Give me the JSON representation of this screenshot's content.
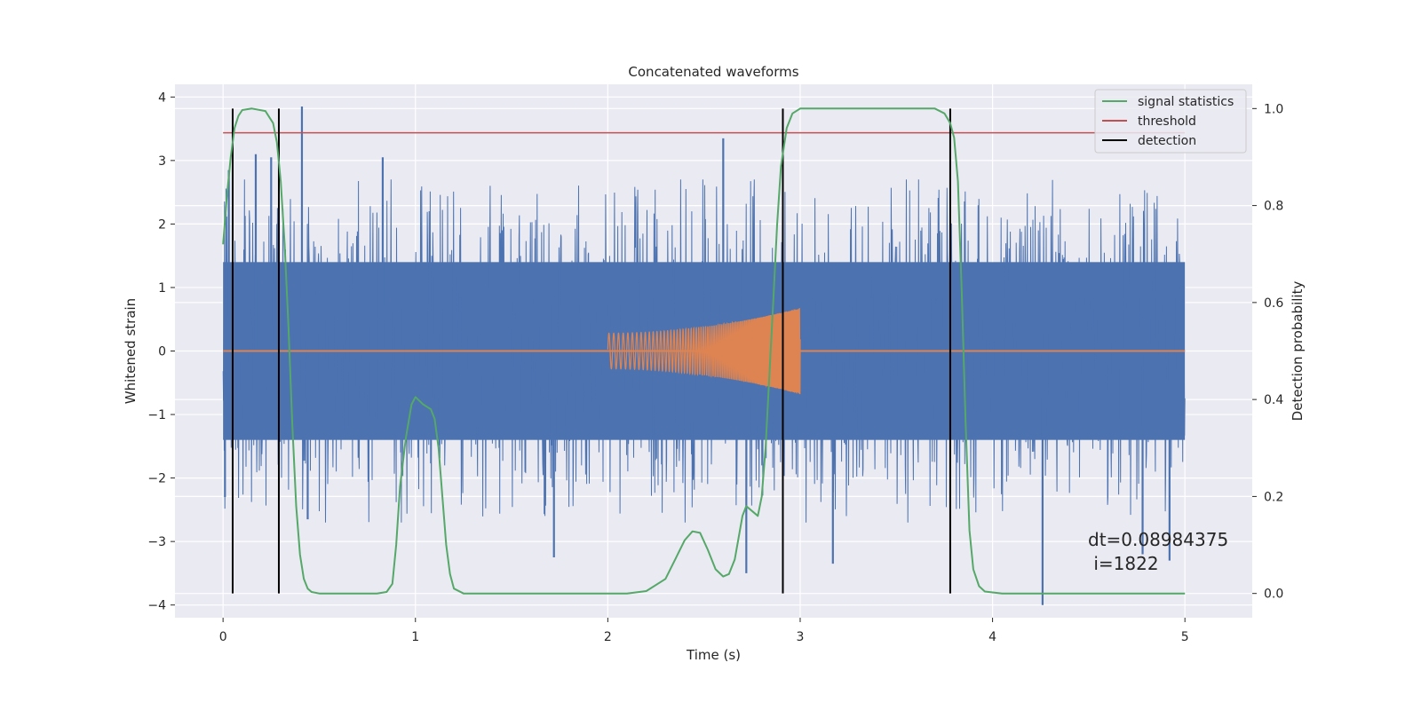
{
  "chart_data": {
    "type": "line",
    "title": "Concatenated waveforms",
    "xlabel": "Time (s)",
    "ylabel": "Whitened strain",
    "y2label": "Detection probability",
    "xlim": [
      -0.25,
      5.35
    ],
    "ylim": [
      -4.2,
      4.2
    ],
    "y2lim": [
      -0.05,
      1.05
    ],
    "x_ticks": [
      0,
      1,
      2,
      3,
      4,
      5
    ],
    "y_ticks": [
      -4,
      -3,
      -2,
      -1,
      0,
      1,
      2,
      3,
      4
    ],
    "y2_ticks": [
      0.0,
      0.2,
      0.4,
      0.6,
      0.8,
      1.0
    ],
    "x_tick_labels": [
      "0",
      "1",
      "2",
      "3",
      "4",
      "5"
    ],
    "y_tick_labels": [
      "−4",
      "−3",
      "−2",
      "−1",
      "0",
      "1",
      "2",
      "3",
      "4"
    ],
    "y2_tick_labels": [
      "0.0",
      "0.2",
      "0.4",
      "0.6",
      "0.8",
      "1.0"
    ],
    "grid": true,
    "background": "#eaeaf2",
    "legend_position": "top-right",
    "legend": [
      {
        "label": "signal statistics",
        "color": "#55a868"
      },
      {
        "label": "threshold",
        "color": "#c44e52"
      },
      {
        "label": "detection",
        "color": "#000000"
      }
    ],
    "annotation": {
      "line1": "dt=0.08984375",
      "line2": " i=1822"
    },
    "noise": {
      "color": "#4c72b0",
      "x_range": [
        0,
        5
      ],
      "band_amplitude": 1.4,
      "typical_peak": 2.2,
      "spikes": [
        {
          "x": 0.41,
          "y": 3.85
        },
        {
          "x": 0.17,
          "y": 3.1
        },
        {
          "x": 0.25,
          "y": 3.05
        },
        {
          "x": 0.83,
          "y": 3.05
        },
        {
          "x": 2.6,
          "y": 3.35
        },
        {
          "x": 2.72,
          "y": -3.5
        },
        {
          "x": 1.72,
          "y": -3.25
        },
        {
          "x": 3.17,
          "y": -3.35
        },
        {
          "x": 4.26,
          "y": -4.0
        },
        {
          "x": 0.44,
          "y": -2.65
        },
        {
          "x": 4.92,
          "y": -3.3
        },
        {
          "x": 4.78,
          "y": -3.2
        },
        {
          "x": 0.03,
          "y": 2.85
        },
        {
          "x": 0.01,
          "y": -2.3
        }
      ]
    },
    "injection": {
      "color": "#dd8452",
      "t_start": 2.0,
      "t_end": 3.0,
      "amplitude_start": 0.28,
      "amplitude_end": 0.68,
      "freq_start_hz": 40,
      "freq_end_hz": 220,
      "baseline_x": [
        0,
        5
      ],
      "baseline_y": 0
    },
    "signal_statistics": {
      "axis": "right",
      "color": "#55a868",
      "x": [
        0.0,
        0.02,
        0.04,
        0.06,
        0.08,
        0.1,
        0.15,
        0.22,
        0.26,
        0.28,
        0.3,
        0.32,
        0.34,
        0.36,
        0.38,
        0.4,
        0.42,
        0.44,
        0.46,
        0.5,
        0.6,
        0.8,
        0.85,
        0.88,
        0.9,
        0.92,
        0.95,
        0.98,
        1.0,
        1.04,
        1.08,
        1.1,
        1.12,
        1.14,
        1.16,
        1.18,
        1.2,
        1.25,
        1.4,
        2.1,
        2.2,
        2.3,
        2.35,
        2.4,
        2.44,
        2.48,
        2.52,
        2.56,
        2.6,
        2.63,
        2.66,
        2.7,
        2.72,
        2.75,
        2.78,
        2.8,
        2.82,
        2.84,
        2.86,
        2.88,
        2.9,
        2.93,
        2.96,
        3.0,
        3.1,
        3.7,
        3.75,
        3.78,
        3.8,
        3.82,
        3.84,
        3.86,
        3.88,
        3.9,
        3.93,
        3.96,
        4.05,
        5.0
      ],
      "y": [
        0.72,
        0.82,
        0.9,
        0.96,
        0.985,
        0.997,
        1.0,
        0.995,
        0.97,
        0.93,
        0.85,
        0.72,
        0.55,
        0.35,
        0.18,
        0.08,
        0.03,
        0.01,
        0.003,
        0.0,
        0.0,
        0.0,
        0.003,
        0.02,
        0.1,
        0.22,
        0.32,
        0.39,
        0.405,
        0.39,
        0.38,
        0.36,
        0.3,
        0.2,
        0.1,
        0.04,
        0.01,
        0.0,
        0.0,
        0.0,
        0.005,
        0.03,
        0.07,
        0.11,
        0.128,
        0.125,
        0.09,
        0.05,
        0.035,
        0.04,
        0.07,
        0.16,
        0.18,
        0.17,
        0.16,
        0.2,
        0.3,
        0.45,
        0.6,
        0.76,
        0.88,
        0.96,
        0.99,
        1.0,
        1.0,
        1.0,
        0.99,
        0.97,
        0.94,
        0.85,
        0.62,
        0.35,
        0.13,
        0.05,
        0.015,
        0.004,
        0.0,
        0.0
      ]
    },
    "threshold": {
      "axis": "right",
      "color": "#c44e52",
      "x": [
        0,
        5
      ],
      "value": 0.95
    },
    "detections": {
      "axis": "right",
      "color": "#000000",
      "x": [
        0.05,
        0.29,
        2.91,
        3.78
      ],
      "y_range": [
        0.0,
        1.0
      ]
    }
  }
}
